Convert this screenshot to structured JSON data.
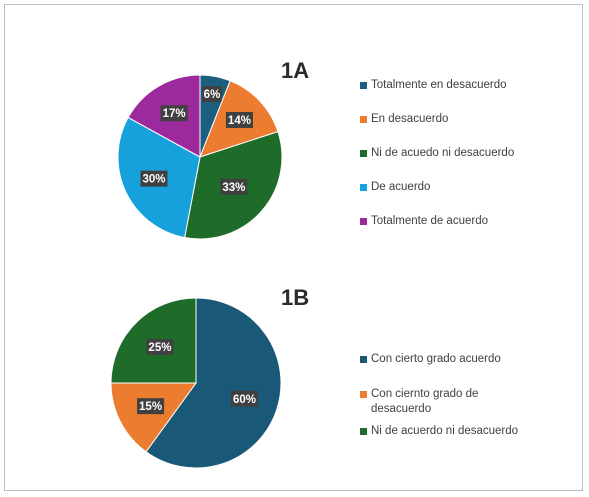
{
  "chart_data": [
    {
      "type": "pie",
      "title": "1A",
      "legend_position": "right",
      "series": [
        {
          "label": "Totalmente en desacuerdo",
          "value": 6,
          "display": "6%",
          "color": "#1b5e80"
        },
        {
          "label": "En desacuerdo",
          "value": 14,
          "display": "14%",
          "color": "#ec7c30"
        },
        {
          "label": "Ni de acuedo ni desacuerdo",
          "value": 33,
          "display": "33%",
          "color": "#1e6b2a"
        },
        {
          "label": "De acuerdo",
          "value": 30,
          "display": "30%",
          "color": "#17a1dc"
        },
        {
          "label": "Totalmente de acuerdo",
          "value": 17,
          "display": "17%",
          "color": "#9c2a9c"
        }
      ]
    },
    {
      "type": "pie",
      "title": "1B",
      "legend_position": "right",
      "series": [
        {
          "label": "Con cierto grado acuerdo",
          "value": 60,
          "display": "60%",
          "color": "#1a5877"
        },
        {
          "label": "Con ciernto grado de desacuerdo",
          "value": 15,
          "display": "15%",
          "color": "#ec7c30"
        },
        {
          "label": "Ni de acuerdo ni desacuerdo",
          "value": 25,
          "display": "25%",
          "color": "#1e6b2a"
        }
      ]
    }
  ]
}
